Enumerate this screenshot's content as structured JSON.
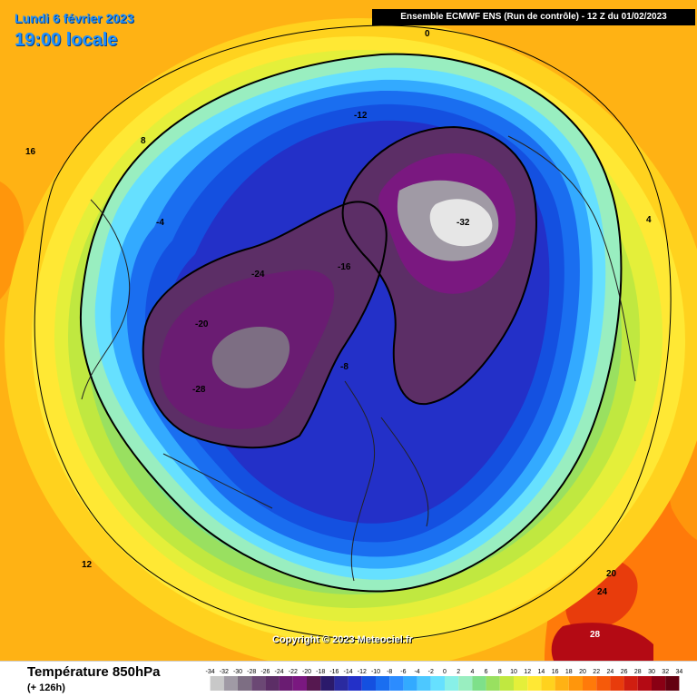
{
  "header": {
    "date_label": "Lundi 6 février 2023",
    "time_label": "19:00 locale",
    "model_label": "Ensemble ECMWF ENS  (Run de contrôle)  -  12 Z du 01/02/2023"
  },
  "map": {
    "copyright": "Copyright © 2023 Meteociel.fr",
    "temperature_labels": [
      {
        "text": "-12",
        "region": "polar-vortex-ring"
      },
      {
        "text": "-16",
        "region": "polar-vortex-ring"
      },
      {
        "text": "-20",
        "region": "north-america-core"
      },
      {
        "text": "-24",
        "region": "north-america-core"
      },
      {
        "text": "-28",
        "region": "north-america-core"
      },
      {
        "text": "-32",
        "region": "siberia-core"
      },
      {
        "text": "-8",
        "region": "outer-ring"
      },
      {
        "text": "-4",
        "region": "outer-ring"
      },
      {
        "text": "0",
        "region": "outer-ring"
      },
      {
        "text": "4",
        "region": "mid-latitudes"
      },
      {
        "text": "8",
        "region": "mid-latitudes"
      },
      {
        "text": "12",
        "region": "subtropics"
      },
      {
        "text": "16",
        "region": "subtropics"
      },
      {
        "text": "20",
        "region": "subtropics"
      },
      {
        "text": "24",
        "region": "south-asia"
      },
      {
        "text": "28",
        "region": "south-asia"
      }
    ]
  },
  "footer": {
    "title": "Température 850hPa",
    "hours": "(+ 126h)"
  },
  "legend": {
    "ticks": [
      "-34",
      "-32",
      "-30",
      "-28",
      "-26",
      "-24",
      "-22",
      "-20",
      "-18",
      "-16",
      "-14",
      "-12",
      "-10",
      "-8",
      "-6",
      "-4",
      "-2",
      "0",
      "2",
      "4",
      "6",
      "8",
      "10",
      "12",
      "14",
      "16",
      "18",
      "20",
      "22",
      "24",
      "26",
      "28",
      "30",
      "32",
      "34"
    ],
    "colors": [
      "#c8c8c8",
      "#a09aa5",
      "#7d6e83",
      "#6b4874",
      "#5c2e66",
      "#6a1c72",
      "#7a1880",
      "#561850",
      "#2b1a6b",
      "#2a2aa0",
      "#2330c8",
      "#1450e0",
      "#1a6ef0",
      "#2c8cff",
      "#33aaff",
      "#4dc8ff",
      "#66e0ff",
      "#88f0e8",
      "#99eec0",
      "#7ee08a",
      "#99e060",
      "#c0e840",
      "#e4ef3a",
      "#ffe834",
      "#ffd21e",
      "#ffb214",
      "#ff960c",
      "#ff7a0a",
      "#f65a0a",
      "#e83c0c",
      "#d01e10",
      "#b40a14",
      "#8a0014",
      "#640010"
    ]
  }
}
